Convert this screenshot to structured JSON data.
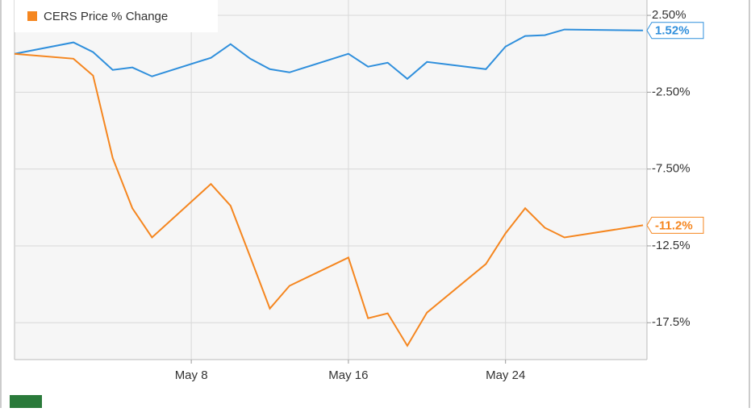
{
  "chart_data": {
    "type": "line",
    "x": [
      -1,
      2,
      3,
      4,
      5,
      6,
      9,
      10,
      11,
      12,
      13,
      16,
      17,
      18,
      19,
      20,
      23,
      24,
      25,
      26,
      27,
      31
    ],
    "xlim": [
      -1,
      31.2
    ],
    "xticks": [
      {
        "value": 8,
        "label": "May 8"
      },
      {
        "value": 16,
        "label": "May 16"
      },
      {
        "value": 24,
        "label": "May 24"
      }
    ],
    "ylim": [
      -19.9,
      3.5
    ],
    "yticks": [
      {
        "value": 2.5,
        "label": "2.50%"
      },
      {
        "value": -2.5,
        "label": "-2.50%"
      },
      {
        "value": -7.5,
        "label": "-7.50%"
      },
      {
        "value": -12.5,
        "label": "-12.5%"
      },
      {
        "value": -17.5,
        "label": "-17.5%"
      }
    ],
    "grid": true,
    "series": [
      {
        "color": "#2f8fdc",
        "end_label": "1.52%",
        "values": [
          0,
          0.74,
          0.11,
          -1.05,
          -0.89,
          -1.47,
          -0.26,
          0.63,
          -0.32,
          -1.0,
          -1.21,
          0,
          -0.84,
          -0.58,
          -1.63,
          -0.53,
          -1.0,
          0.47,
          1.16,
          1.21,
          1.58,
          1.52
        ]
      },
      {
        "name": "CERS Price % Change",
        "color": "#f5861f",
        "end_label": "-11.2%",
        "values": [
          0,
          -0.32,
          -1.42,
          -6.79,
          -10.05,
          -11.95,
          -8.47,
          -9.89,
          -13.21,
          -16.58,
          -15.1,
          -13.26,
          -17.21,
          -16.89,
          -19.0,
          -16.84,
          -13.68,
          -11.68,
          -10.05,
          -11.32,
          -11.95,
          -11.16
        ]
      }
    ]
  }
}
